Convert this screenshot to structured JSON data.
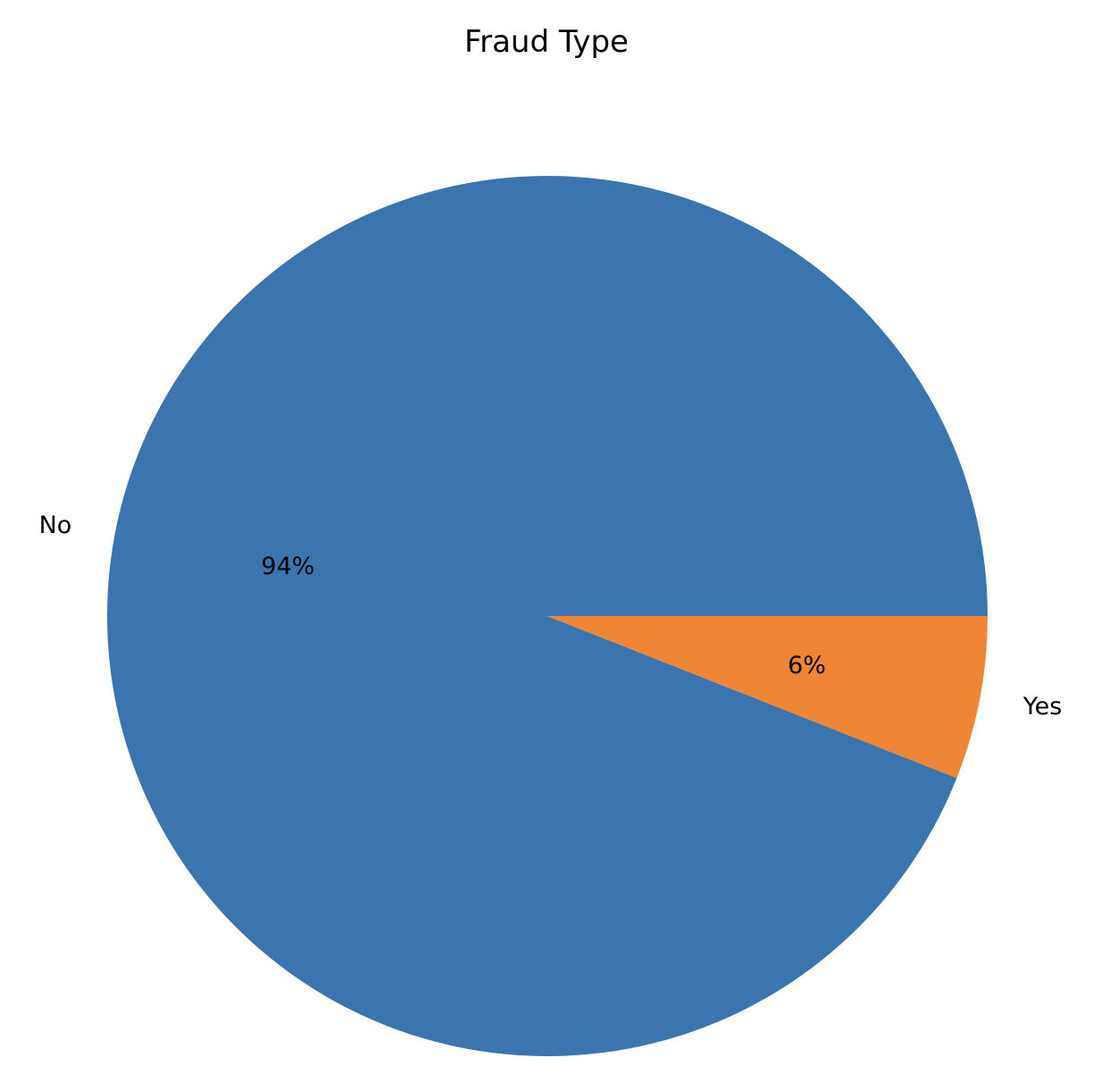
{
  "chart_data": {
    "type": "pie",
    "title": "Fraud Type",
    "categories": [
      "No",
      "Yes"
    ],
    "values": [
      94,
      6
    ],
    "value_labels": [
      "94%",
      "6%"
    ],
    "colors": [
      "#3b75af",
      "#ef8636"
    ],
    "start_angle_deg": 0,
    "direction": "counterclockwise",
    "legend": "none"
  }
}
